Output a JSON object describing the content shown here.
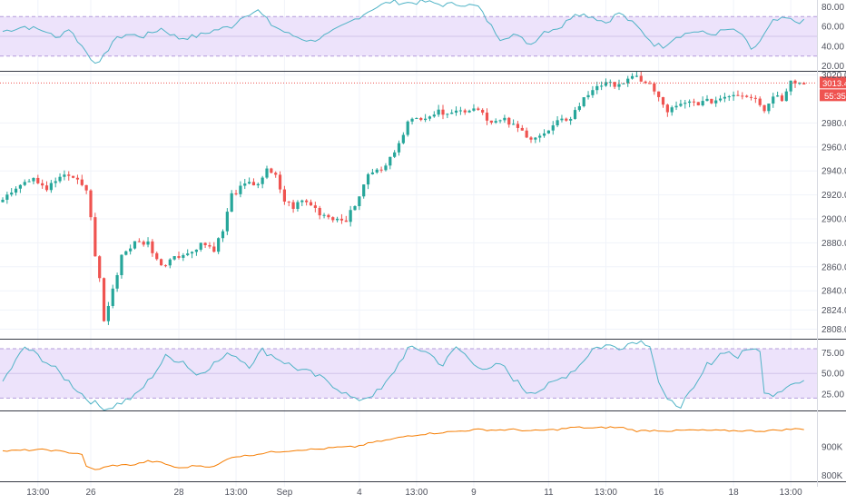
{
  "chart_data": {
    "type": "candlestick",
    "colors": {
      "up": "#26a69a",
      "down": "#ef5350",
      "osc": "#4fb3c6",
      "volume": "#f57c00",
      "band_fill": "#ede3fb",
      "band_line": "#b39ddb",
      "price_line": "#ef5350",
      "grid": "#f0f3fa",
      "axis_text": "#50535e"
    },
    "x_axis": {
      "tick_labels": [
        "13:00",
        "26",
        "28",
        "13:00",
        "Sep",
        "4",
        "13:00",
        "9",
        "11",
        "13:00",
        "16",
        "18",
        "13:00"
      ],
      "tick_positions_bar": [
        8,
        20,
        40,
        53,
        64,
        81,
        94,
        107,
        124,
        137,
        149,
        166,
        179
      ]
    },
    "top_oscillator": {
      "axis_labels": [
        "80.00",
        "60.00",
        "40.00",
        "20.00"
      ],
      "ylim": [
        15,
        85
      ],
      "band": [
        30,
        70
      ],
      "mid": 50,
      "anchors": [
        [
          0,
          55
        ],
        [
          5,
          60
        ],
        [
          10,
          55
        ],
        [
          12,
          48
        ],
        [
          15,
          58
        ],
        [
          20,
          28
        ],
        [
          22,
          22
        ],
        [
          25,
          45
        ],
        [
          28,
          52
        ],
        [
          32,
          50
        ],
        [
          36,
          58
        ],
        [
          40,
          48
        ],
        [
          44,
          50
        ],
        [
          48,
          56
        ],
        [
          52,
          60
        ],
        [
          55,
          72
        ],
        [
          58,
          76
        ],
        [
          61,
          62
        ],
        [
          65,
          52
        ],
        [
          70,
          45
        ],
        [
          74,
          52
        ],
        [
          78,
          62
        ],
        [
          81,
          70
        ],
        [
          84,
          78
        ],
        [
          88,
          85
        ],
        [
          92,
          84
        ],
        [
          96,
          85
        ],
        [
          100,
          82
        ],
        [
          104,
          83
        ],
        [
          108,
          80
        ],
        [
          111,
          60
        ],
        [
          113,
          48
        ],
        [
          116,
          52
        ],
        [
          120,
          42
        ],
        [
          123,
          55
        ],
        [
          127,
          60
        ],
        [
          130,
          74
        ],
        [
          134,
          70
        ],
        [
          137,
          64
        ],
        [
          140,
          74
        ],
        [
          144,
          60
        ],
        [
          148,
          42
        ],
        [
          150,
          40
        ],
        [
          153,
          50
        ],
        [
          157,
          55
        ],
        [
          161,
          52
        ],
        [
          165,
          57
        ],
        [
          168,
          52
        ],
        [
          170,
          35
        ],
        [
          172,
          45
        ],
        [
          175,
          65
        ],
        [
          178,
          68
        ],
        [
          180,
          65
        ]
      ]
    },
    "price": {
      "axis_labels": [
        "3020.0",
        "2980.0",
        "2960.0",
        "2940.0",
        "2920.0",
        "2900.0",
        "2880.0",
        "2860.0",
        "2840.0",
        "2824.0",
        "2808.0"
      ],
      "ylim": [
        2800,
        3022
      ],
      "last_price": "3013.4",
      "countdown": "55:35",
      "anchors": [
        [
          0,
          2918
        ],
        [
          4,
          2930
        ],
        [
          7,
          2935
        ],
        [
          10,
          2925
        ],
        [
          13,
          2935
        ],
        [
          16,
          2935
        ],
        [
          19,
          2925
        ],
        [
          20,
          2900
        ],
        [
          21,
          2870
        ],
        [
          22,
          2850
        ],
        [
          23,
          2815
        ],
        [
          25,
          2840
        ],
        [
          27,
          2870
        ],
        [
          30,
          2880
        ],
        [
          33,
          2880
        ],
        [
          36,
          2860
        ],
        [
          39,
          2870
        ],
        [
          42,
          2870
        ],
        [
          45,
          2880
        ],
        [
          48,
          2875
        ],
        [
          50,
          2890
        ],
        [
          52,
          2920
        ],
        [
          55,
          2928
        ],
        [
          58,
          2930
        ],
        [
          60,
          2940
        ],
        [
          62,
          2935
        ],
        [
          64,
          2915
        ],
        [
          66,
          2910
        ],
        [
          68,
          2915
        ],
        [
          70,
          2912
        ],
        [
          72,
          2905
        ],
        [
          74,
          2902
        ],
        [
          76,
          2900
        ],
        [
          78,
          2900
        ],
        [
          80,
          2910
        ],
        [
          82,
          2930
        ],
        [
          84,
          2940
        ],
        [
          86,
          2940
        ],
        [
          88,
          2950
        ],
        [
          90,
          2965
        ],
        [
          92,
          2980
        ],
        [
          95,
          2985
        ],
        [
          98,
          2988
        ],
        [
          101,
          2990
        ],
        [
          104,
          2990
        ],
        [
          108,
          2993
        ],
        [
          111,
          2980
        ],
        [
          114,
          2982
        ],
        [
          117,
          2975
        ],
        [
          120,
          2968
        ],
        [
          123,
          2970
        ],
        [
          126,
          2980
        ],
        [
          129,
          2985
        ],
        [
          132,
          3000
        ],
        [
          135,
          3012
        ],
        [
          138,
          3012
        ],
        [
          141,
          3014
        ],
        [
          144,
          3018
        ],
        [
          147,
          3012
        ],
        [
          149,
          3000
        ],
        [
          151,
          2990
        ],
        [
          153,
          2993
        ],
        [
          156,
          2997
        ],
        [
          159,
          2997
        ],
        [
          162,
          2999
        ],
        [
          165,
          3004
        ],
        [
          168,
          3004
        ],
        [
          171,
          3002
        ],
        [
          173,
          2990
        ],
        [
          175,
          3004
        ],
        [
          177,
          3000
        ],
        [
          179,
          3017
        ],
        [
          181,
          3013
        ]
      ]
    },
    "bottom_oscillator": {
      "axis_labels": [
        "75.00",
        "50.00",
        "25.00"
      ],
      "ylim": [
        5,
        90
      ],
      "band": [
        20,
        80
      ],
      "mid": 50,
      "anchors": [
        [
          0,
          40
        ],
        [
          5,
          82
        ],
        [
          9,
          68
        ],
        [
          12,
          55
        ],
        [
          15,
          40
        ],
        [
          19,
          20
        ],
        [
          22,
          10
        ],
        [
          24,
          8
        ],
        [
          27,
          15
        ],
        [
          30,
          22
        ],
        [
          33,
          40
        ],
        [
          37,
          70
        ],
        [
          41,
          65
        ],
        [
          44,
          48
        ],
        [
          48,
          62
        ],
        [
          52,
          75
        ],
        [
          56,
          60
        ],
        [
          59,
          78
        ],
        [
          62,
          70
        ],
        [
          66,
          58
        ],
        [
          70,
          50
        ],
        [
          74,
          40
        ],
        [
          78,
          25
        ],
        [
          80,
          17
        ],
        [
          83,
          22
        ],
        [
          86,
          30
        ],
        [
          88,
          45
        ],
        [
          92,
          80
        ],
        [
          96,
          78
        ],
        [
          100,
          60
        ],
        [
          103,
          82
        ],
        [
          106,
          68
        ],
        [
          110,
          52
        ],
        [
          113,
          62
        ],
        [
          116,
          44
        ],
        [
          119,
          28
        ],
        [
          122,
          30
        ],
        [
          125,
          38
        ],
        [
          128,
          48
        ],
        [
          131,
          60
        ],
        [
          134,
          80
        ],
        [
          137,
          84
        ],
        [
          140,
          82
        ],
        [
          144,
          90
        ],
        [
          147,
          86
        ],
        [
          149,
          40
        ],
        [
          151,
          15
        ],
        [
          154,
          12
        ],
        [
          157,
          30
        ],
        [
          160,
          60
        ],
        [
          164,
          78
        ],
        [
          167,
          70
        ],
        [
          170,
          82
        ],
        [
          172,
          75
        ],
        [
          173,
          30
        ],
        [
          175,
          25
        ],
        [
          178,
          35
        ],
        [
          180,
          38
        ]
      ]
    },
    "volume_indicator": {
      "axis_labels": [
        "900K",
        "800K"
      ],
      "ylim": [
        780000,
        1020000
      ],
      "anchors": [
        [
          0,
          885000
        ],
        [
          5,
          888000
        ],
        [
          10,
          890000
        ],
        [
          14,
          882000
        ],
        [
          18,
          875000
        ],
        [
          19,
          830000
        ],
        [
          21,
          820000
        ],
        [
          25,
          835000
        ],
        [
          30,
          838000
        ],
        [
          33,
          850000
        ],
        [
          36,
          845000
        ],
        [
          40,
          825000
        ],
        [
          44,
          835000
        ],
        [
          48,
          830000
        ],
        [
          52,
          865000
        ],
        [
          56,
          870000
        ],
        [
          60,
          880000
        ],
        [
          64,
          885000
        ],
        [
          68,
          890000
        ],
        [
          72,
          892000
        ],
        [
          76,
          898000
        ],
        [
          80,
          900000
        ],
        [
          84,
          915000
        ],
        [
          88,
          925000
        ],
        [
          92,
          938000
        ],
        [
          96,
          945000
        ],
        [
          100,
          950000
        ],
        [
          104,
          955000
        ],
        [
          108,
          960000
        ],
        [
          112,
          958000
        ],
        [
          116,
          960000
        ],
        [
          120,
          955000
        ],
        [
          123,
          958000
        ],
        [
          126,
          960000
        ],
        [
          130,
          968000
        ],
        [
          134,
          965000
        ],
        [
          138,
          968000
        ],
        [
          141,
          966000
        ],
        [
          144,
          955000
        ],
        [
          148,
          957000
        ],
        [
          152,
          955000
        ],
        [
          156,
          958000
        ],
        [
          160,
          957000
        ],
        [
          164,
          956000
        ],
        [
          168,
          956000
        ],
        [
          172,
          955000
        ],
        [
          176,
          958000
        ],
        [
          180,
          962000
        ]
      ]
    }
  }
}
